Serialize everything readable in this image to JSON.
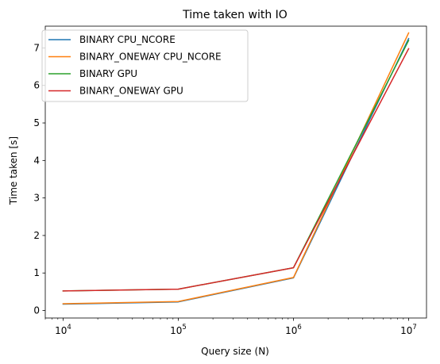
{
  "chart_data": {
    "type": "line",
    "title": "Time taken with IO",
    "xlabel": "Query size (N)",
    "ylabel": "Time taken [s]",
    "xscale": "log",
    "xlim": [
      7000,
      14300000
    ],
    "ylim": [
      -0.2,
      7.58
    ],
    "grid": false,
    "legend_position": "top-left",
    "x": [
      10000,
      100000,
      1000000,
      10000000
    ],
    "x_tick_labels": [
      {
        "base": "10",
        "exp": "4",
        "value": 10000
      },
      {
        "base": "10",
        "exp": "5",
        "value": 100000
      },
      {
        "base": "10",
        "exp": "6",
        "value": 1000000
      },
      {
        "base": "10",
        "exp": "7",
        "value": 10000000
      }
    ],
    "y_ticks": [
      0,
      1,
      2,
      3,
      4,
      5,
      6,
      7
    ],
    "y_tick_labels": [
      "0",
      "1",
      "2",
      "3",
      "4",
      "5",
      "6",
      "7"
    ],
    "series": [
      {
        "name": "BINARY CPU_NCORE",
        "color": "#1f77b4",
        "values": [
          0.17,
          0.23,
          0.87,
          7.25
        ]
      },
      {
        "name": "BINARY_ONEWAY CPU_NCORE",
        "color": "#ff7f0e",
        "values": [
          0.18,
          0.24,
          0.88,
          7.4
        ]
      },
      {
        "name": "BINARY GPU",
        "color": "#2ca02c",
        "values": [
          0.52,
          0.57,
          1.14,
          7.2
        ]
      },
      {
        "name": "BINARY_ONEWAY GPU",
        "color": "#d62728",
        "values": [
          0.52,
          0.57,
          1.14,
          6.98
        ]
      }
    ]
  }
}
